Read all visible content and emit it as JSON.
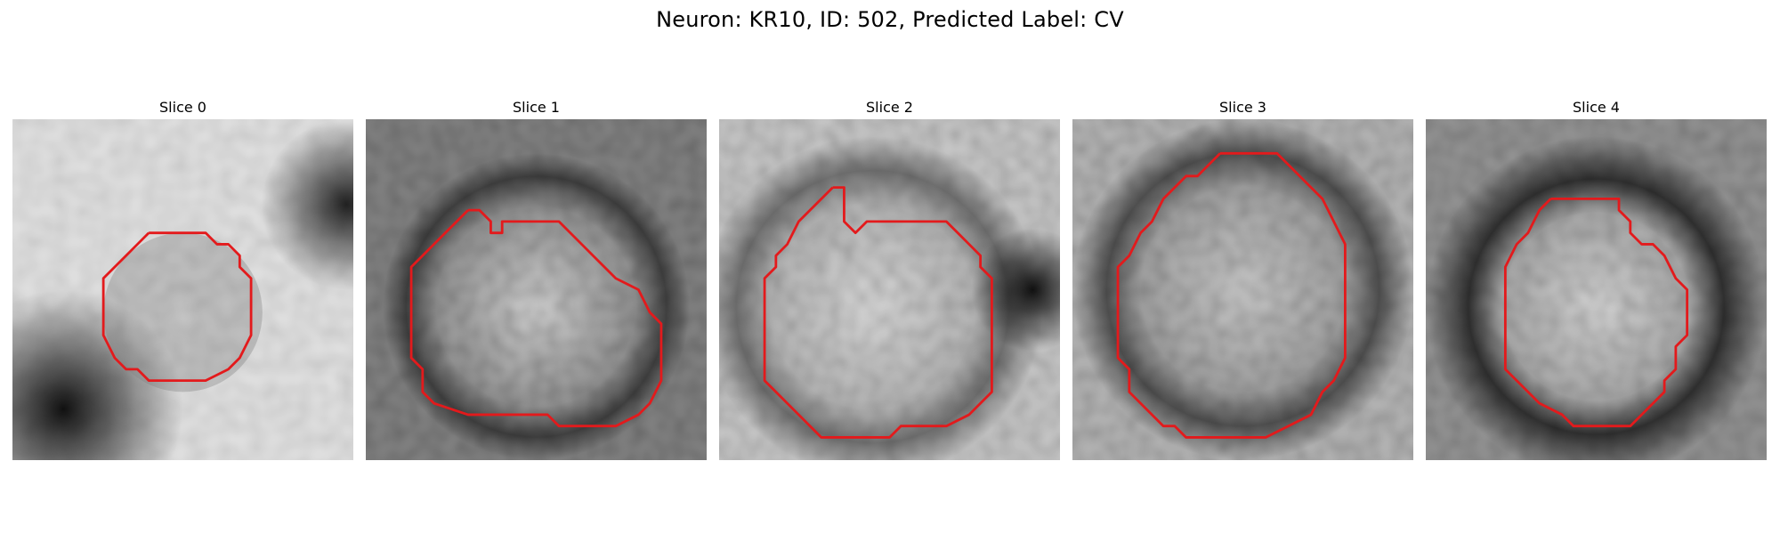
{
  "figure": {
    "title": "Neuron: KR10, ID: 502, Predicted Label: CV"
  },
  "colors": {
    "contour": "#e31a1c",
    "background": "#ffffff"
  },
  "panels": [
    {
      "title": "Slice 0"
    },
    {
      "title": "Slice 1"
    },
    {
      "title": "Slice 2"
    },
    {
      "title": "Slice 3"
    },
    {
      "title": "Slice 4"
    }
  ]
}
